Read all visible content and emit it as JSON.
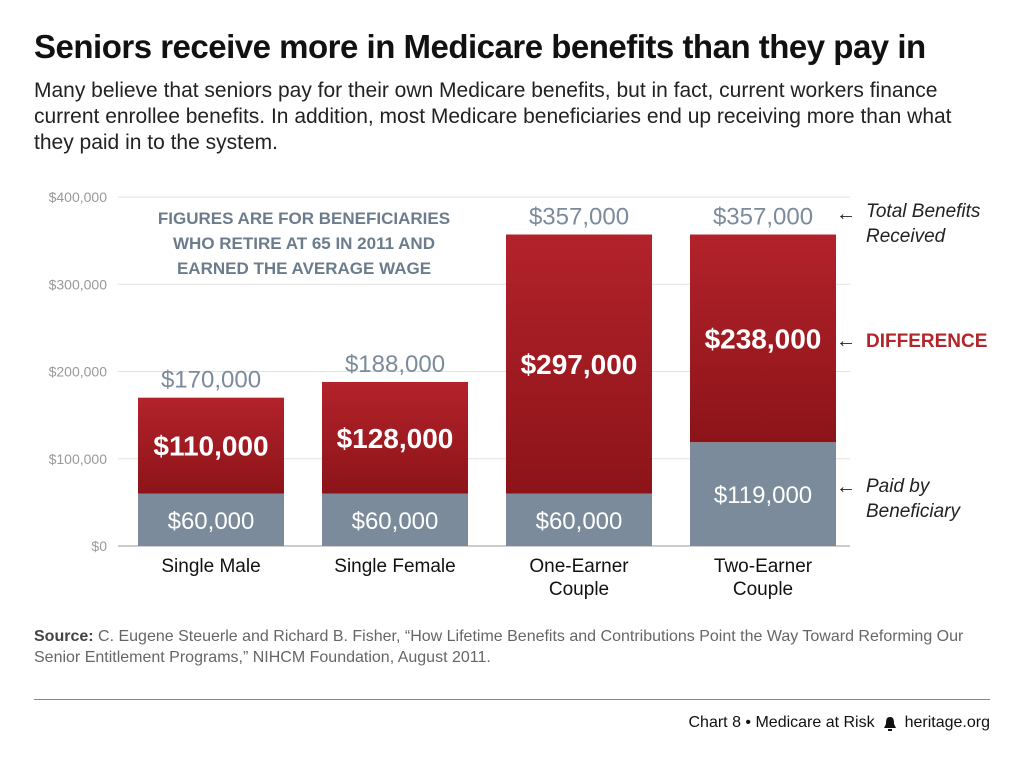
{
  "title": "Seniors receive more in Medicare benefits than they pay in",
  "subtitle": "Many believe that seniors pay for their own Medicare benefits, but in fact, current workers finance current enrollee benefits. In addition, most Medicare beneficiaries end up receiving more than what they paid in to the system.",
  "chart_data": {
    "type": "bar",
    "stacked": true,
    "categories": [
      [
        "Single Male"
      ],
      [
        "Single Female"
      ],
      [
        "One-Earner",
        "Couple"
      ],
      [
        "Two-Earner",
        "Couple"
      ]
    ],
    "series": [
      {
        "name": "Paid by Beneficiary",
        "values": [
          60000,
          60000,
          60000,
          119000
        ],
        "labels": [
          "$60,000",
          "$60,000",
          "$60,000",
          "$119,000"
        ],
        "color": "#7b8b9b"
      },
      {
        "name": "Difference",
        "values": [
          110000,
          128000,
          297000,
          238000
        ],
        "labels": [
          "$110,000",
          "$128,000",
          "$297,000",
          "$238,000"
        ],
        "color": "#a51c21"
      }
    ],
    "totals": [
      170000,
      188000,
      357000,
      357000
    ],
    "total_labels": [
      "$170,000",
      "$188,000",
      "$357,000",
      "$357,000"
    ],
    "ylim": [
      0,
      400000
    ],
    "yticks": [
      0,
      100000,
      200000,
      300000,
      400000
    ],
    "ytick_labels": [
      "$0",
      "$100,000",
      "$200,000",
      "$300,000",
      "$400,000"
    ],
    "grid": true,
    "annotation": [
      "FIGURES ARE FOR BENEFICIARIES",
      "WHO RETIRE AT 65 IN 2011 AND",
      "EARNED THE AVERAGE WAGE"
    ],
    "legend": {
      "total": [
        "Total Benefits",
        "Received"
      ],
      "difference": "DIFFERENCE",
      "paid": [
        "Paid by",
        "Beneficiary"
      ]
    }
  },
  "source_label": "Source:",
  "source_text": "C. Eugene Steuerle and Richard B. Fisher, “How Lifetime Benefits and Contributions Point the Way Toward Reforming Our Senior Entitlement Programs,” NIHCM Foundation, August 2011.",
  "footer": {
    "chart_label": "Chart 8 • Medicare at Risk",
    "site": "heritage.org"
  },
  "colors": {
    "accent": "#b0262a",
    "gray": "#7b8b9b",
    "annotation": "#6d7c8c"
  }
}
